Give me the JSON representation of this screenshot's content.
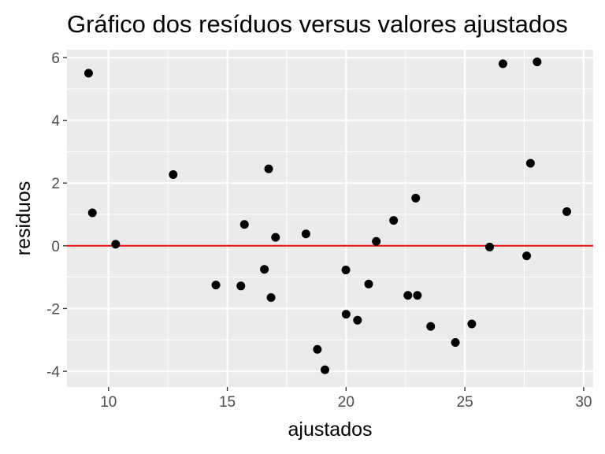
{
  "chart_data": {
    "type": "scatter",
    "title": "Gráfico dos resíduos versus valores ajustados",
    "xlabel": "ajustados",
    "ylabel": "residuos",
    "xlim": [
      8.25,
      30.4
    ],
    "ylim": [
      -4.5,
      6.25
    ],
    "xticks": [
      10,
      15,
      20,
      25,
      30
    ],
    "xtick_labels": [
      "10",
      "15",
      "20",
      "25",
      "30"
    ],
    "yticks": [
      -4,
      -2,
      0,
      2,
      4,
      6
    ],
    "ytick_labels": [
      "-4",
      "-2",
      "0",
      "2",
      "4",
      "6"
    ],
    "reference_line": {
      "y": 0,
      "color": "#e41a1c"
    },
    "grid": true,
    "background": "#ebebeb",
    "point_color": "#000000",
    "points": [
      {
        "x": 9.16,
        "y": 5.5
      },
      {
        "x": 9.32,
        "y": 1.05
      },
      {
        "x": 10.3,
        "y": 0.05
      },
      {
        "x": 12.72,
        "y": 2.27
      },
      {
        "x": 14.52,
        "y": -1.25
      },
      {
        "x": 15.57,
        "y": -1.28
      },
      {
        "x": 15.72,
        "y": 0.68
      },
      {
        "x": 16.56,
        "y": -0.75
      },
      {
        "x": 16.74,
        "y": 2.45
      },
      {
        "x": 16.84,
        "y": -1.65
      },
      {
        "x": 17.03,
        "y": 0.27
      },
      {
        "x": 18.31,
        "y": 0.38
      },
      {
        "x": 18.79,
        "y": -3.3
      },
      {
        "x": 19.11,
        "y": -3.95
      },
      {
        "x": 19.99,
        "y": -0.77
      },
      {
        "x": 20.0,
        "y": -2.18
      },
      {
        "x": 20.48,
        "y": -2.37
      },
      {
        "x": 20.95,
        "y": -1.22
      },
      {
        "x": 21.27,
        "y": 0.14
      },
      {
        "x": 22.0,
        "y": 0.81
      },
      {
        "x": 22.6,
        "y": -1.58
      },
      {
        "x": 22.93,
        "y": 1.52
      },
      {
        "x": 23.0,
        "y": -1.58
      },
      {
        "x": 23.56,
        "y": -2.57
      },
      {
        "x": 24.6,
        "y": -3.08
      },
      {
        "x": 25.29,
        "y": -2.49
      },
      {
        "x": 26.04,
        "y": -0.04
      },
      {
        "x": 26.6,
        "y": 5.8
      },
      {
        "x": 27.6,
        "y": -0.32
      },
      {
        "x": 27.76,
        "y": 2.63
      },
      {
        "x": 28.04,
        "y": 5.86
      },
      {
        "x": 29.29,
        "y": 1.09
      }
    ]
  }
}
